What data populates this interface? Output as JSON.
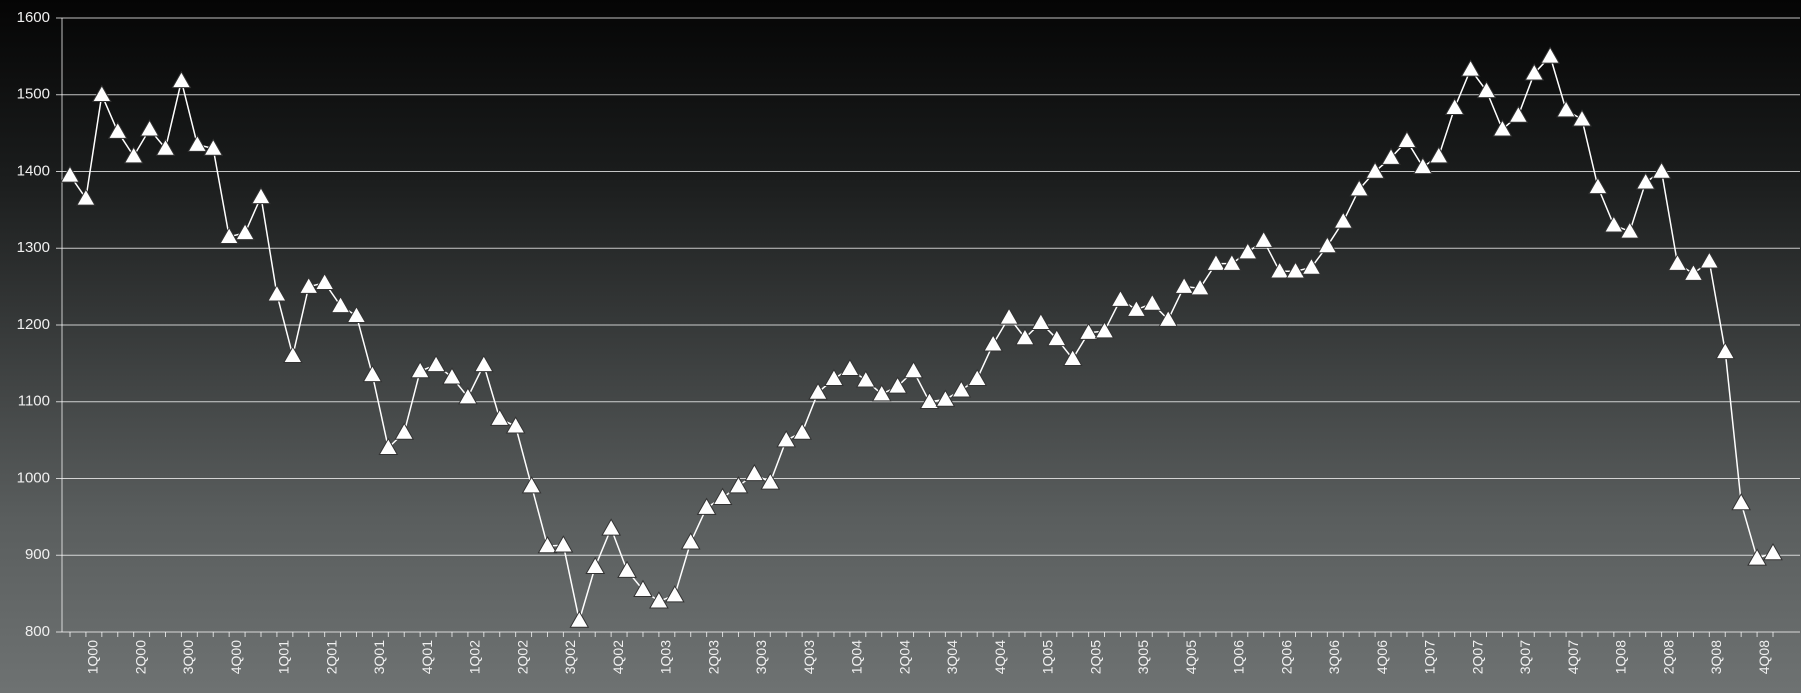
{
  "chart_data": {
    "type": "line",
    "categories": [
      null,
      "1Q00",
      null,
      null,
      "2Q00",
      null,
      null,
      "3Q00",
      null,
      null,
      "4Q00",
      null,
      null,
      "1Q01",
      null,
      null,
      "2Q01",
      null,
      null,
      "3Q01",
      null,
      null,
      "4Q01",
      null,
      null,
      "1Q02",
      null,
      null,
      "2Q02",
      null,
      null,
      "3Q02",
      null,
      null,
      "4Q02",
      null,
      null,
      "1Q03",
      null,
      null,
      "2Q03",
      null,
      null,
      "3Q03",
      null,
      null,
      "4Q03",
      null,
      null,
      "1Q04",
      null,
      null,
      "2Q04",
      null,
      null,
      "3Q04",
      null,
      null,
      "4Q04",
      null,
      null,
      "1Q05",
      null,
      null,
      "2Q05",
      null,
      null,
      "3Q05",
      null,
      null,
      "4Q05",
      null,
      null,
      "1Q06",
      null,
      null,
      "2Q06",
      null,
      null,
      "3Q06",
      null,
      null,
      "4Q06",
      null,
      null,
      "1Q07",
      null,
      null,
      "2Q07",
      null,
      null,
      "3Q07",
      null,
      null,
      "4Q07",
      null,
      null,
      "1Q08",
      null,
      null,
      "2Q08",
      null,
      null,
      "3Q08",
      null,
      null,
      "4Q08",
      null
    ],
    "values": [
      1395,
      1365,
      1500,
      1452,
      1420,
      1455,
      1430,
      1518,
      1435,
      1430,
      1315,
      1320,
      1367,
      1240,
      1160,
      1250,
      1255,
      1225,
      1212,
      1135,
      1040,
      1060,
      1140,
      1148,
      1132,
      1106,
      1148,
      1078,
      1068,
      990,
      912,
      913,
      815,
      885,
      935,
      880,
      855,
      840,
      848,
      917,
      962,
      975,
      990,
      1006,
      995,
      1050,
      1060,
      1112,
      1130,
      1143,
      1128,
      1110,
      1120,
      1140,
      1100,
      1103,
      1115,
      1130,
      1175,
      1210,
      1183,
      1203,
      1182,
      1156,
      1190,
      1192,
      1233,
      1220,
      1228,
      1207,
      1250,
      1248,
      1280,
      1280,
      1295,
      1310,
      1270,
      1270,
      1275,
      1303,
      1335,
      1377,
      1400,
      1418,
      1440,
      1406,
      1420,
      1483,
      1533,
      1505,
      1455,
      1473,
      1528,
      1550,
      1480,
      1468,
      1380,
      1330,
      1322,
      1386,
      1400,
      1280,
      1267,
      1283,
      1165,
      968,
      896,
      903
    ],
    "color": "#ffffff",
    "ylim": [
      800,
      1600
    ],
    "yticks": [
      800,
      900,
      1000,
      1100,
      1200,
      1300,
      1400,
      1500,
      1600
    ],
    "grid": true
  }
}
